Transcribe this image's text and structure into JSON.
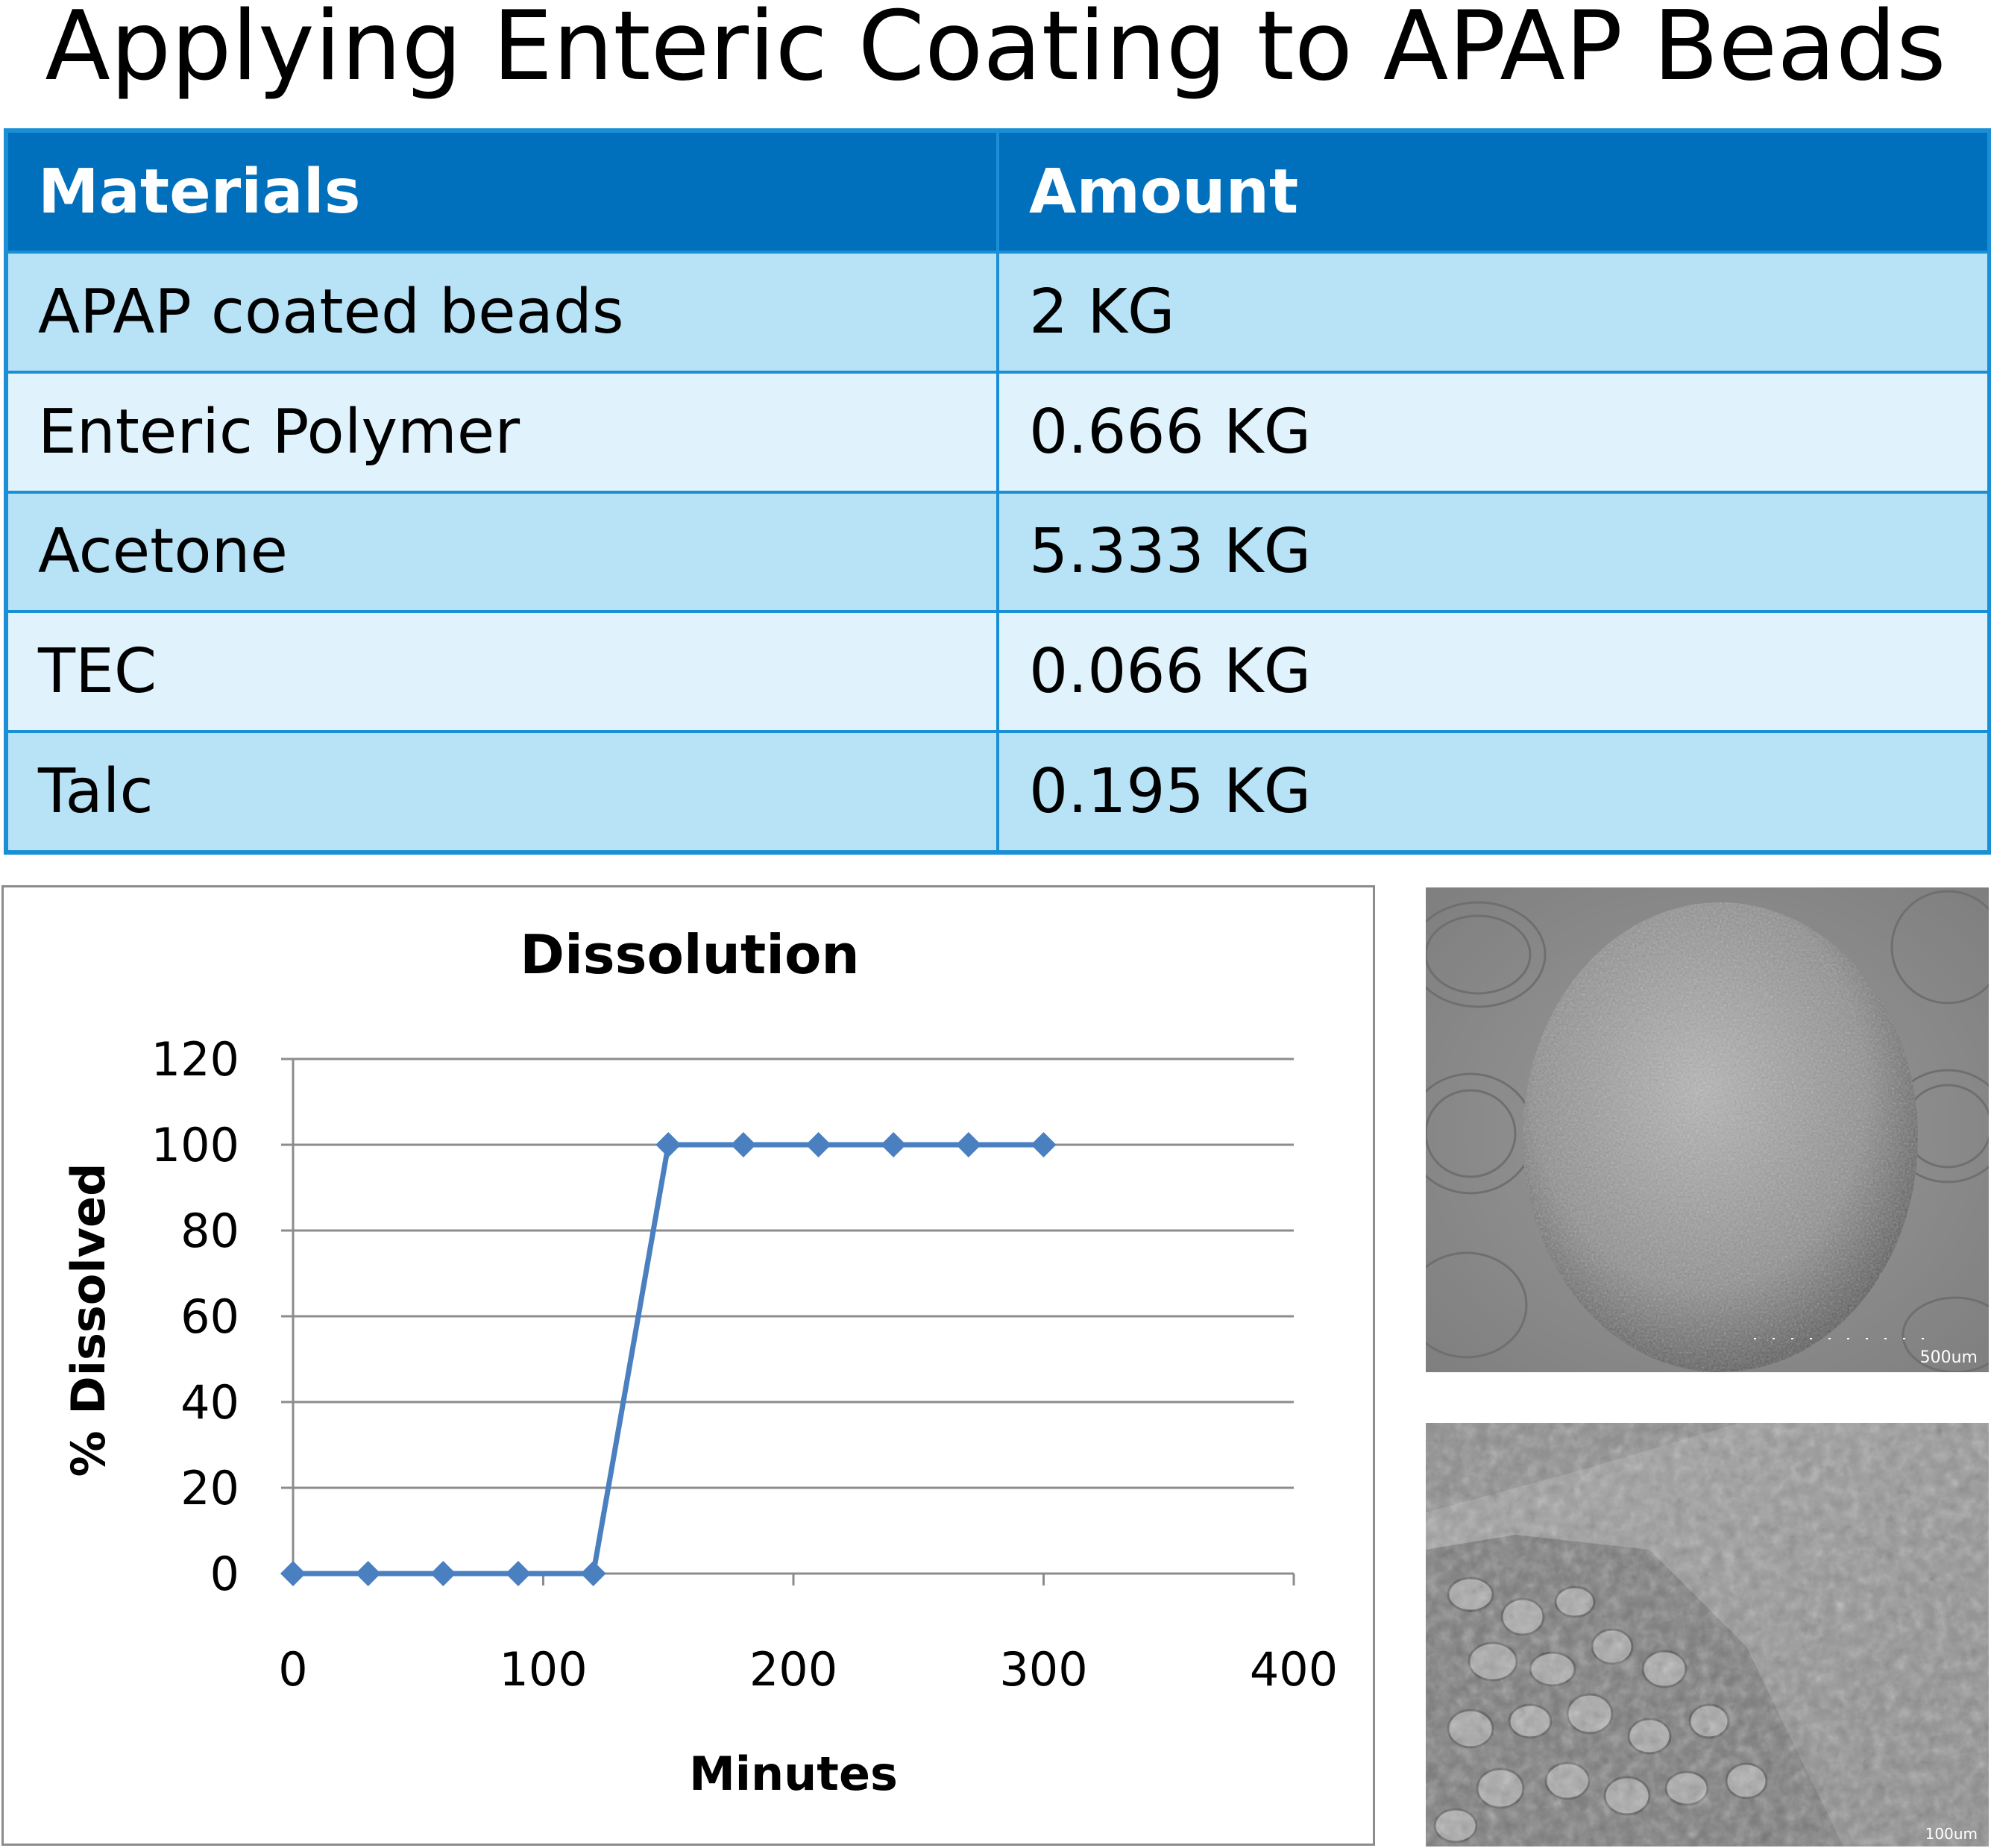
{
  "title": "Applying Enteric Coating to APAP Beads",
  "table": {
    "headers": [
      "Materials",
      "Amount"
    ],
    "rows": [
      [
        "APAP coated beads",
        "2 KG"
      ],
      [
        "Enteric Polymer",
        "0.666 KG"
      ],
      [
        "Acetone",
        "5.333 KG"
      ],
      [
        "TEC",
        "0.066 KG"
      ],
      [
        "Talc",
        "0.195 KG"
      ]
    ]
  },
  "colors": {
    "header_bg": "#0070bc",
    "row_dark": "#b8e3f7",
    "row_light": "#e0f3fc",
    "series": "#4a7fc0"
  },
  "chart_data": {
    "type": "line",
    "title": "Dissolution",
    "xlabel": "Minutes",
    "ylabel": "% Dissolved",
    "xlim": [
      0,
      400
    ],
    "ylim": [
      0,
      120
    ],
    "x_ticks": [
      0,
      100,
      200,
      300,
      400
    ],
    "y_ticks": [
      0,
      20,
      40,
      60,
      80,
      100,
      120
    ],
    "grid": true,
    "x": [
      0,
      30,
      60,
      90,
      120,
      150,
      180,
      210,
      240,
      270,
      300
    ],
    "values": [
      0,
      0,
      0,
      0,
      0,
      100,
      100,
      100,
      100,
      100,
      100
    ]
  },
  "images": [
    {
      "name": "sem-bead-whole",
      "scale_label": "500um"
    },
    {
      "name": "sem-bead-closeup",
      "scale_label": "100um"
    }
  ]
}
